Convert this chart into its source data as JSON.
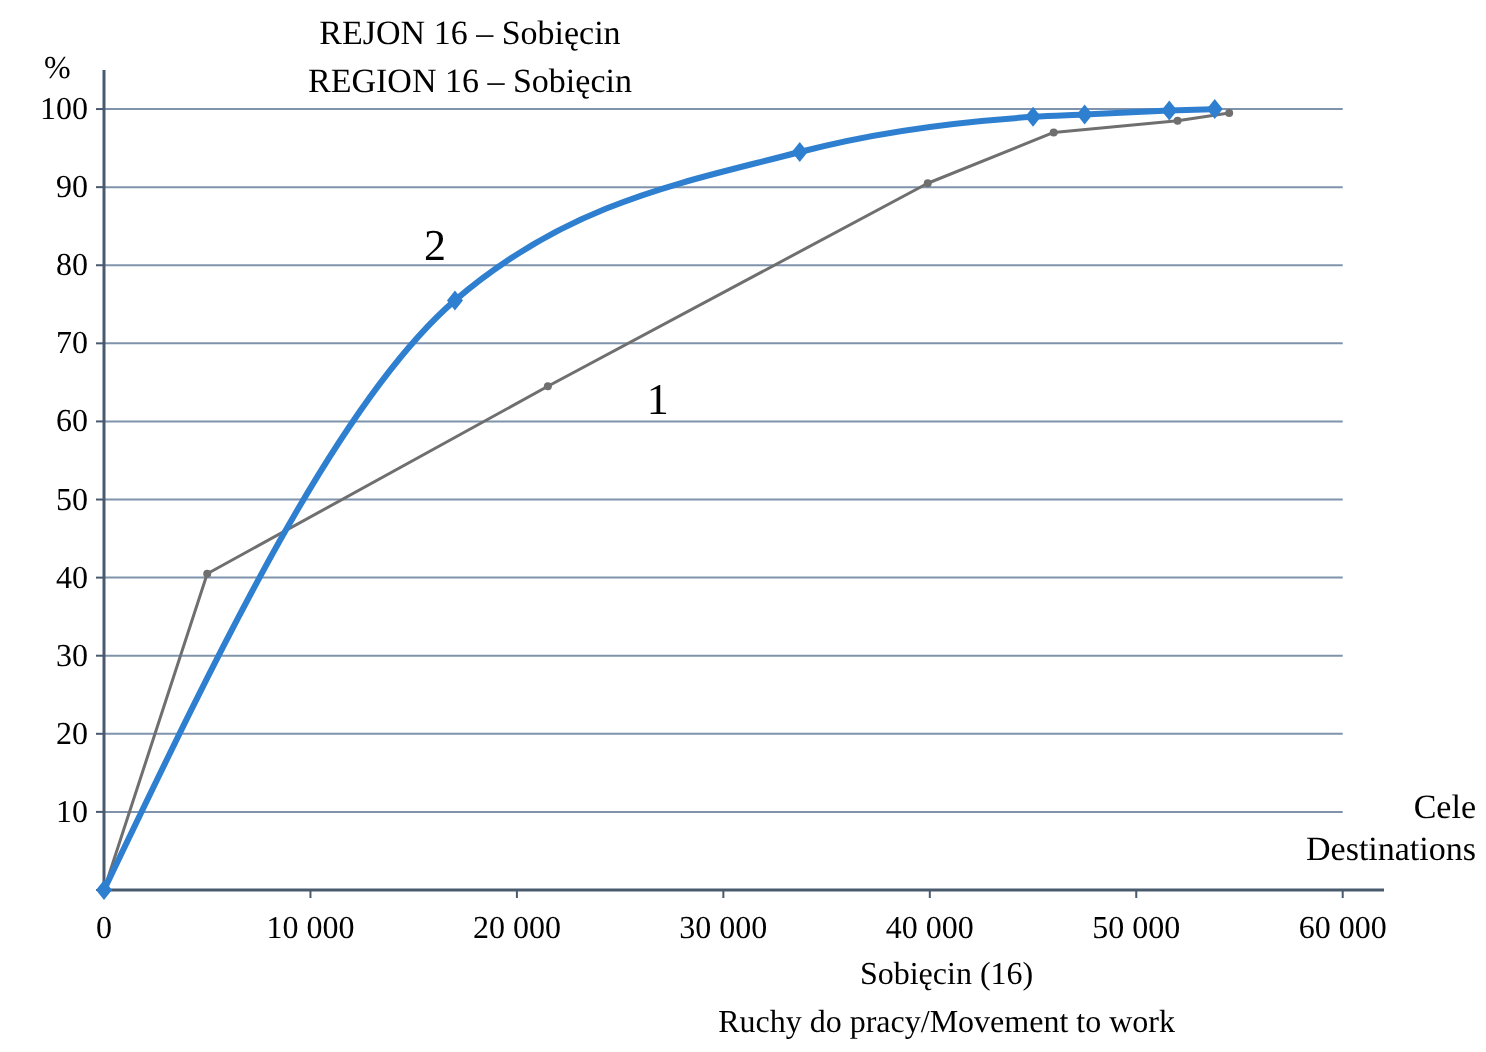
{
  "chart_data": {
    "type": "line",
    "title": "REJON 16 – Sobięcin\nREGION 16 – Sobięcin",
    "xlabel": "Sobięcin (16)\nRuchy do pracy/Movement to work",
    "ylabel": "%",
    "annotations": [
      "Cele\nDestinations"
    ],
    "xlim": [
      0,
      62000
    ],
    "xticks": [
      0,
      {
        "value": 10000,
        "label": "10 000"
      },
      {
        "value": 20000,
        "label": "20 000"
      },
      {
        "value": 30000,
        "label": "30 000"
      },
      {
        "value": 40000,
        "label": "40 000"
      },
      {
        "value": 50000,
        "label": "50 000"
      },
      {
        "value": 60000,
        "label": "60 000"
      }
    ],
    "ylim": [
      0,
      105
    ],
    "yticks": [
      {
        "value": 0,
        "label": null
      },
      10,
      20,
      30,
      40,
      50,
      60,
      70,
      80,
      90,
      100
    ],
    "grid": "y",
    "series": [
      {
        "name": "1",
        "color": "#6f6f6f",
        "marker": "circle",
        "x": [
          0,
          5000,
          21500,
          39900,
          46000,
          52000,
          54500
        ],
        "values": [
          0,
          40.5,
          64.5,
          90.5,
          97,
          98.5,
          99.5
        ]
      },
      {
        "name": "2",
        "color": "#2f7fd0",
        "marker": "diamond",
        "x": [
          0,
          17000,
          33700,
          45000,
          47500,
          51600,
          53800
        ],
        "values": [
          0,
          75.5,
          94.5,
          99,
          99.3,
          99.8,
          100
        ]
      }
    ]
  }
}
